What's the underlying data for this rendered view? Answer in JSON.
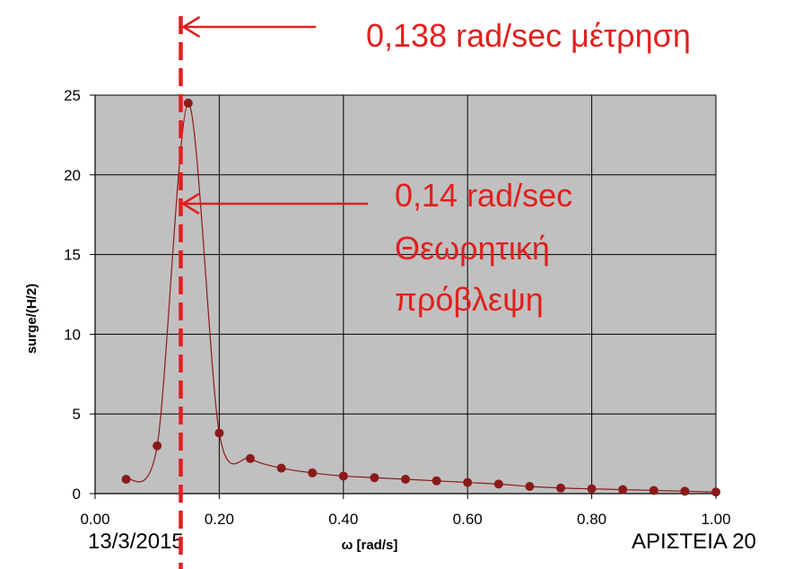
{
  "chart_data": {
    "type": "line",
    "xlabel": "ω [rad/s]",
    "ylabel": "surge/(H/2)",
    "xlim": [
      0,
      1.0
    ],
    "ylim": [
      0,
      25
    ],
    "x_ticks": [
      0,
      0.2,
      0.4,
      0.6,
      0.8,
      1.0
    ],
    "x_tick_labels": [
      "0.00",
      "0.20",
      "0.40",
      "0.60",
      "0.80",
      "1.00"
    ],
    "y_ticks": [
      0,
      5,
      10,
      15,
      20,
      25
    ],
    "y_tick_labels": [
      "0",
      "5",
      "10",
      "15",
      "20",
      "25"
    ],
    "grid": true,
    "plot_background": "#c0c0c0",
    "series": [
      {
        "color": "#8b1a1a",
        "x": [
          0.05,
          0.1,
          0.15,
          0.2,
          0.25,
          0.3,
          0.35,
          0.4,
          0.45,
          0.5,
          0.55,
          0.6,
          0.65,
          0.7,
          0.75,
          0.8,
          0.85,
          0.9,
          0.95,
          1.0
        ],
        "y": [
          0.9,
          3.0,
          24.5,
          3.8,
          2.2,
          1.6,
          1.3,
          1.1,
          1.0,
          0.9,
          0.8,
          0.7,
          0.6,
          0.45,
          0.35,
          0.3,
          0.25,
          0.2,
          0.15,
          0.1
        ]
      }
    ],
    "annotations": [
      {
        "name": "measurement",
        "lines": [
          "0,138 rad/sec μέτρηση"
        ],
        "color": "#e0201e",
        "x": 0.138
      },
      {
        "name": "theoretical",
        "lines": [
          "0,14 rad/sec",
          "Θεωρητική",
          "πρόβλεψη"
        ],
        "color": "#e0201e",
        "x": 0.14
      }
    ]
  },
  "footer": {
    "date": "13/3/2015",
    "right": "ΑΡΙΣΤΕΙΑ 20",
    "right_cut": "..............."
  }
}
